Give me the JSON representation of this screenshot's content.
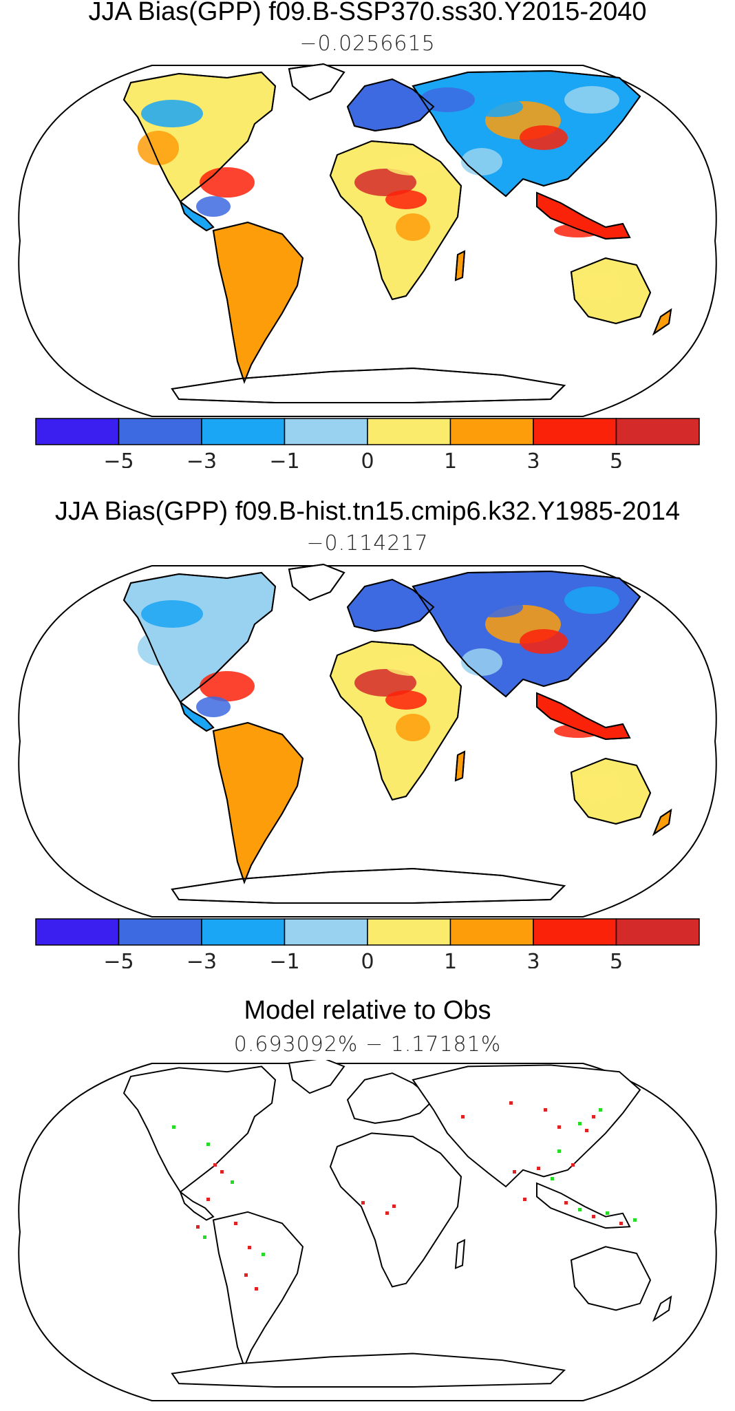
{
  "panels": [
    {
      "title": "JJA Bias(GPP) f09.B-SSP370.ss30.Y2015-2040",
      "subtitle": "−0.0256615"
    },
    {
      "title": "JJA Bias(GPP) f09.B-hist.tn15.cmip6.k32.Y1985-2014",
      "subtitle": "−0.114217"
    },
    {
      "title": "Model relative to Obs",
      "subtitle": "0.693092% − 1.17181%"
    }
  ],
  "colorbar": {
    "colors": [
      "#3a1ff0",
      "#3d6ae0",
      "#1aa6f5",
      "#99d2f0",
      "#fbeb6d",
      "#fd9d0a",
      "#fb220a",
      "#d42a2a"
    ],
    "tick_labels": [
      "−5",
      "−3",
      "−1",
      "0",
      "1",
      "3",
      "5"
    ]
  },
  "markers": {
    "worse_color": "#e22222",
    "better_color": "#22dd22"
  }
}
